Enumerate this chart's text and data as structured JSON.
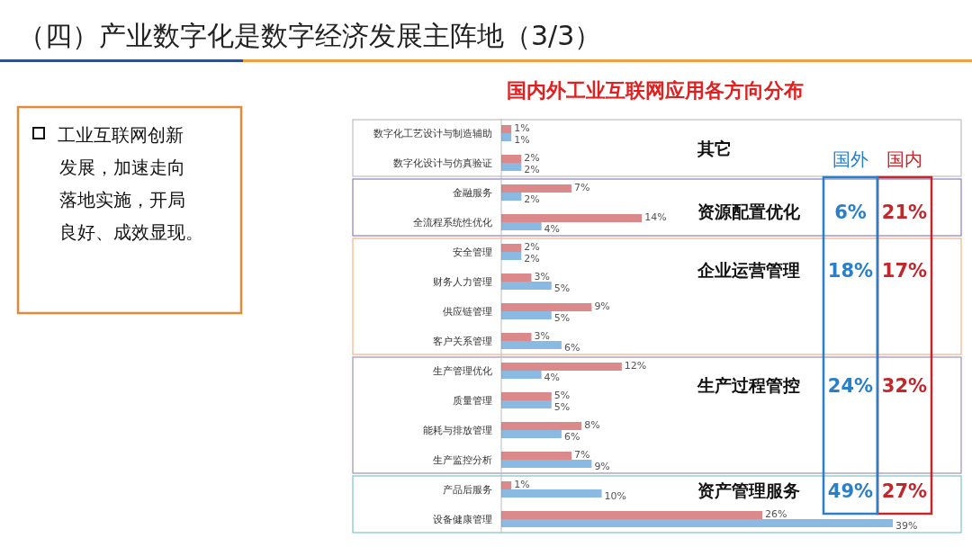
{
  "chart_data": {
    "type": "bar",
    "orientation": "horizontal",
    "title": "（四）产业数字化是数字经济发展主阵地（3/3）",
    "subtitle": "国内外工业互联网应用各方向分布",
    "categories": [
      "数字化工艺设计与制造辅助",
      "数字化设计与仿真验证",
      "金融服务",
      "全流程系统性优化",
      "安全管理",
      "财务人力管理",
      "供应链管理",
      "客户关系管理",
      "生产管理优化",
      "质量管理",
      "能耗与排放管理",
      "生产监控分析",
      "产品后服务",
      "设备健康管理"
    ],
    "series": [
      {
        "name": "国内",
        "color": "#c0282c",
        "values": [
          1,
          2,
          7,
          14,
          2,
          3,
          9,
          3,
          12,
          5,
          8,
          7,
          1,
          26
        ],
        "value_labels": [
          "1%",
          "2%",
          "7%",
          "14%",
          "2%",
          "3%",
          "9%",
          "3%",
          "12%",
          "5%",
          "8%",
          "7%",
          "1%",
          "26%"
        ]
      },
      {
        "name": "国外",
        "color": "#2a80c8",
        "values": [
          1,
          2,
          2,
          4,
          2,
          5,
          5,
          6,
          4,
          5,
          6,
          9,
          10,
          39
        ],
        "value_labels": [
          "1%",
          "2%",
          "2%",
          "4%",
          "2%",
          "5%",
          "5%",
          "6%",
          "4%",
          "5%",
          "6%",
          "9%",
          "10%",
          "39%"
        ]
      }
    ],
    "annotations": [
      "其它",
      "资源配置优化",
      "6%",
      "21%",
      "企业运营管理",
      "18%",
      "17%",
      "生产过程管控",
      "24%",
      "32%",
      "资产管理服务",
      "49%",
      "27%",
      "工业互联网创新发展，加速走向落地实施，开局良好、成效显现。"
    ]
  }
}
